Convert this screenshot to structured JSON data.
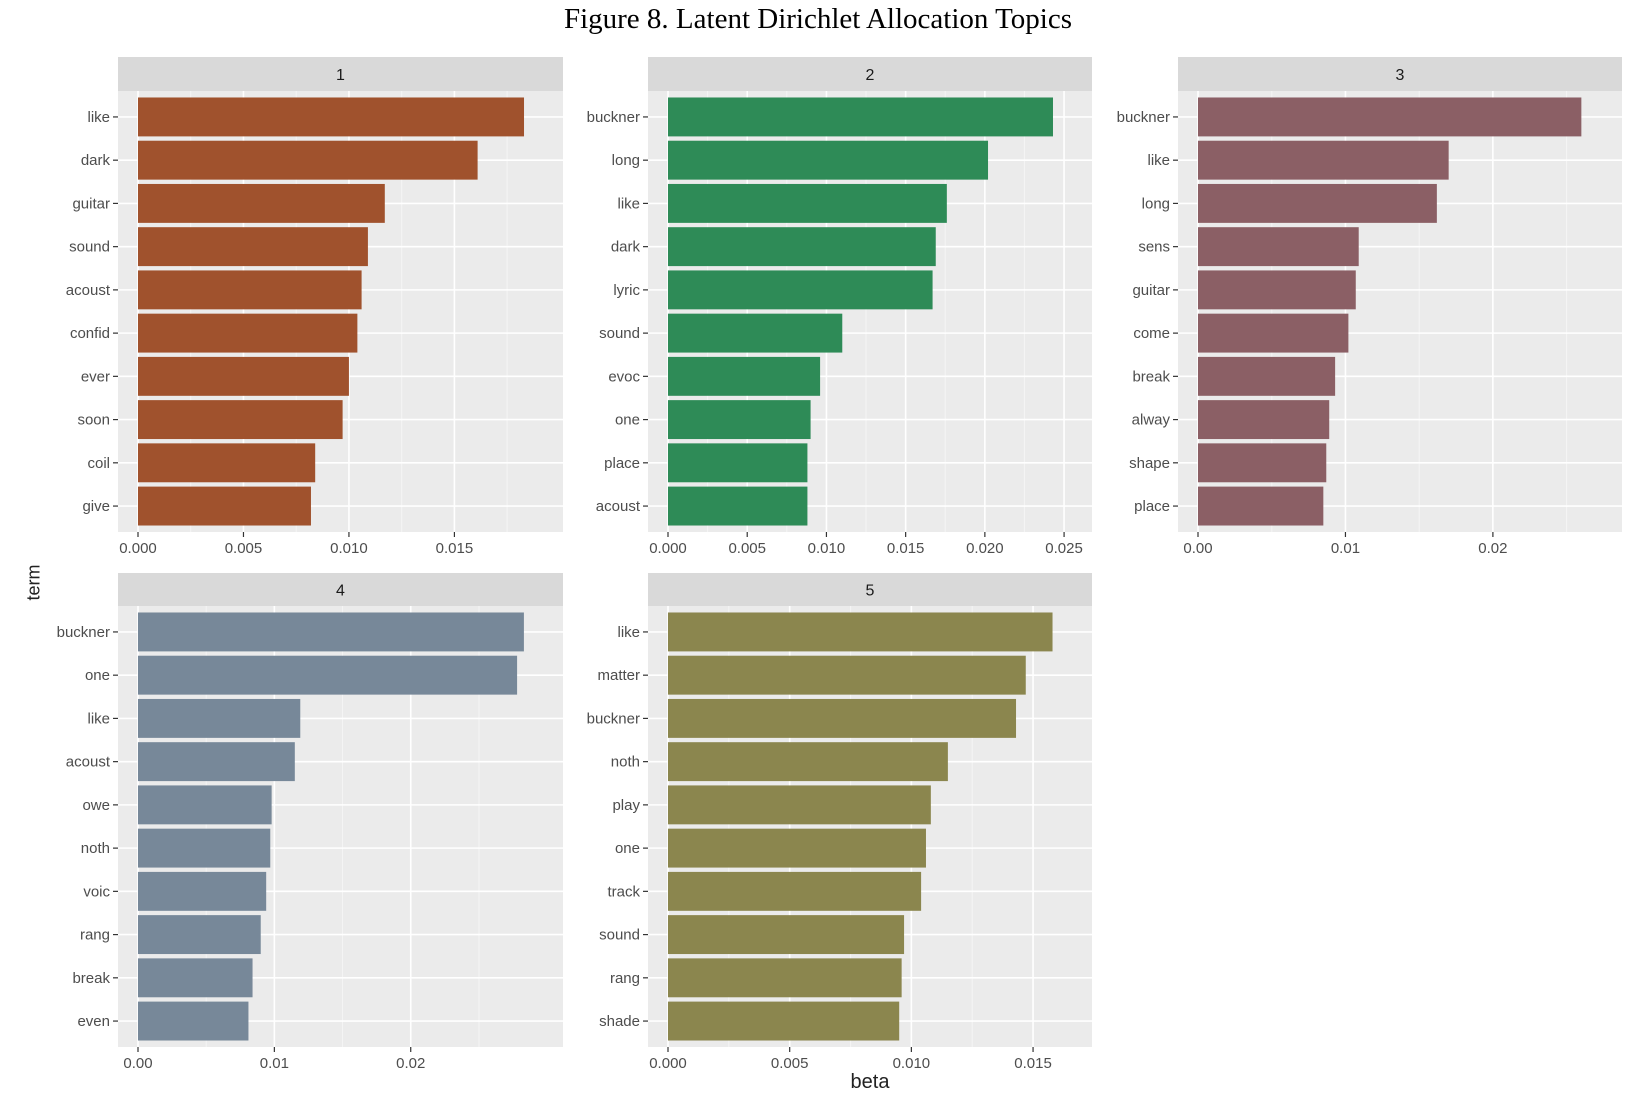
{
  "figure_title": "Figure 8. Latent Dirichlet Allocation Topics",
  "xlabel": "beta",
  "ylabel": "term",
  "colors": {
    "panel_bg": "#ebebeb",
    "strip_bg": "#d9d9d9",
    "grid_major": "#ffffff",
    "grid_minor": "#f5f5f5",
    "axis_text": "#4d4d4d"
  },
  "chart_data": [
    {
      "type": "bar",
      "orientation": "horizontal",
      "facet": "1",
      "color": "#a0522d",
      "categories": [
        "like",
        "dark",
        "guitar",
        "sound",
        "acoust",
        "confid",
        "ever",
        "soon",
        "coil",
        "give"
      ],
      "values": [
        0.0183,
        0.0161,
        0.0117,
        0.0109,
        0.0106,
        0.0104,
        0.01,
        0.0097,
        0.0084,
        0.0082
      ],
      "xlim": [
        0,
        0.0192
      ],
      "ticks": [
        0.0,
        0.005,
        0.01,
        0.015
      ],
      "tick_labels": [
        "0.000",
        "0.005",
        "0.010",
        "0.015"
      ]
    },
    {
      "type": "bar",
      "orientation": "horizontal",
      "facet": "2",
      "color": "#2e8b57",
      "categories": [
        "buckner",
        "long",
        "like",
        "dark",
        "lyric",
        "sound",
        "evoc",
        "one",
        "place",
        "acoust"
      ],
      "values": [
        0.0243,
        0.0202,
        0.0176,
        0.0169,
        0.0167,
        0.011,
        0.0096,
        0.009,
        0.0088,
        0.0088
      ],
      "xlim": [
        0,
        0.0255
      ],
      "ticks": [
        0.0,
        0.005,
        0.01,
        0.015,
        0.02,
        0.025
      ],
      "tick_labels": [
        "0.000",
        "0.005",
        "0.010",
        "0.015",
        "0.020",
        "0.025"
      ]
    },
    {
      "type": "bar",
      "orientation": "horizontal",
      "facet": "3",
      "color": "#8b5f65",
      "categories": [
        "buckner",
        "like",
        "long",
        "sens",
        "guitar",
        "come",
        "break",
        "alway",
        "shape",
        "place"
      ],
      "values": [
        0.026,
        0.017,
        0.0162,
        0.0109,
        0.0107,
        0.0102,
        0.0093,
        0.0089,
        0.0087,
        0.0085
      ],
      "xlim": [
        0,
        0.0274
      ],
      "ticks": [
        0.0,
        0.01,
        0.02
      ],
      "tick_labels": [
        "0.00",
        "0.01",
        "0.02"
      ]
    },
    {
      "type": "bar",
      "orientation": "horizontal",
      "facet": "4",
      "color": "#778899",
      "categories": [
        "buckner",
        "one",
        "like",
        "acoust",
        "owe",
        "noth",
        "voic",
        "rang",
        "break",
        "even"
      ],
      "values": [
        0.0283,
        0.0278,
        0.0119,
        0.0115,
        0.0098,
        0.0097,
        0.0094,
        0.009,
        0.0084,
        0.0081
      ],
      "xlim": [
        0,
        0.0297
      ],
      "ticks": [
        0.0,
        0.01,
        0.02
      ],
      "tick_labels": [
        "0.00",
        "0.01",
        "0.02"
      ]
    },
    {
      "type": "bar",
      "orientation": "horizontal",
      "facet": "5",
      "color": "#8b864e",
      "categories": [
        "like",
        "matter",
        "buckner",
        "noth",
        "play",
        "one",
        "track",
        "sound",
        "rang",
        "shade"
      ],
      "values": [
        0.0158,
        0.0147,
        0.0143,
        0.0115,
        0.0108,
        0.0106,
        0.0104,
        0.0097,
        0.0096,
        0.0095
      ],
      "xlim": [
        0,
        0.0166
      ],
      "ticks": [
        0.0,
        0.005,
        0.01,
        0.015
      ],
      "tick_labels": [
        "0.000",
        "0.005",
        "0.010",
        "0.015"
      ]
    }
  ]
}
